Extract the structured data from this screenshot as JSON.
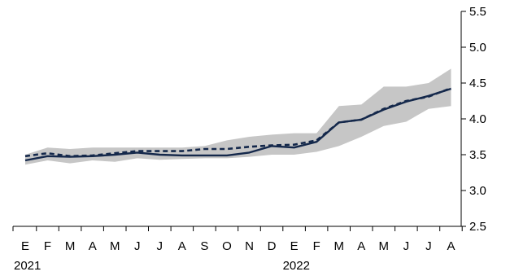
{
  "chart_data": {
    "type": "line",
    "categories": [
      "E",
      "F",
      "M",
      "A",
      "M",
      "J",
      "J",
      "A",
      "S",
      "O",
      "N",
      "D",
      "E",
      "F",
      "M",
      "A",
      "M",
      "J",
      "J",
      "A"
    ],
    "year_labels": [
      {
        "index": 0,
        "label": "2021"
      },
      {
        "index": 12,
        "label": "2022"
      }
    ],
    "ylim": [
      2.5,
      5.5
    ],
    "yticks": [
      2.5,
      3.0,
      3.5,
      4.0,
      4.5,
      5.0,
      5.5
    ],
    "ytick_labels": [
      "2.5",
      "3.0",
      "3.5",
      "4.0",
      "4.5",
      "5.0",
      "5.5"
    ],
    "y_axis_position": "right",
    "grid": false,
    "band": {
      "lower": [
        3.36,
        3.42,
        3.38,
        3.42,
        3.4,
        3.45,
        3.43,
        3.44,
        3.45,
        3.45,
        3.47,
        3.5,
        3.5,
        3.54,
        3.62,
        3.75,
        3.9,
        3.96,
        4.14,
        4.18
      ],
      "upper": [
        3.5,
        3.6,
        3.58,
        3.6,
        3.6,
        3.6,
        3.6,
        3.6,
        3.62,
        3.7,
        3.75,
        3.78,
        3.8,
        3.8,
        4.18,
        4.2,
        4.45,
        4.45,
        4.5,
        4.7
      ],
      "color": "#c6c6c6"
    },
    "series": [
      {
        "style": "solid",
        "color": "#14284b",
        "values": [
          3.42,
          3.48,
          3.47,
          3.48,
          3.5,
          3.53,
          3.5,
          3.49,
          3.49,
          3.49,
          3.53,
          3.62,
          3.6,
          3.68,
          3.95,
          3.99,
          4.13,
          4.24,
          4.32,
          4.42
        ]
      },
      {
        "style": "dashed",
        "color": "#14284b",
        "values": [
          3.48,
          3.52,
          3.48,
          3.49,
          3.52,
          3.55,
          3.55,
          3.55,
          3.58,
          3.58,
          3.61,
          3.63,
          3.64,
          3.7,
          3.95,
          3.99,
          4.14,
          4.25,
          4.31,
          4.43
        ]
      }
    ]
  }
}
